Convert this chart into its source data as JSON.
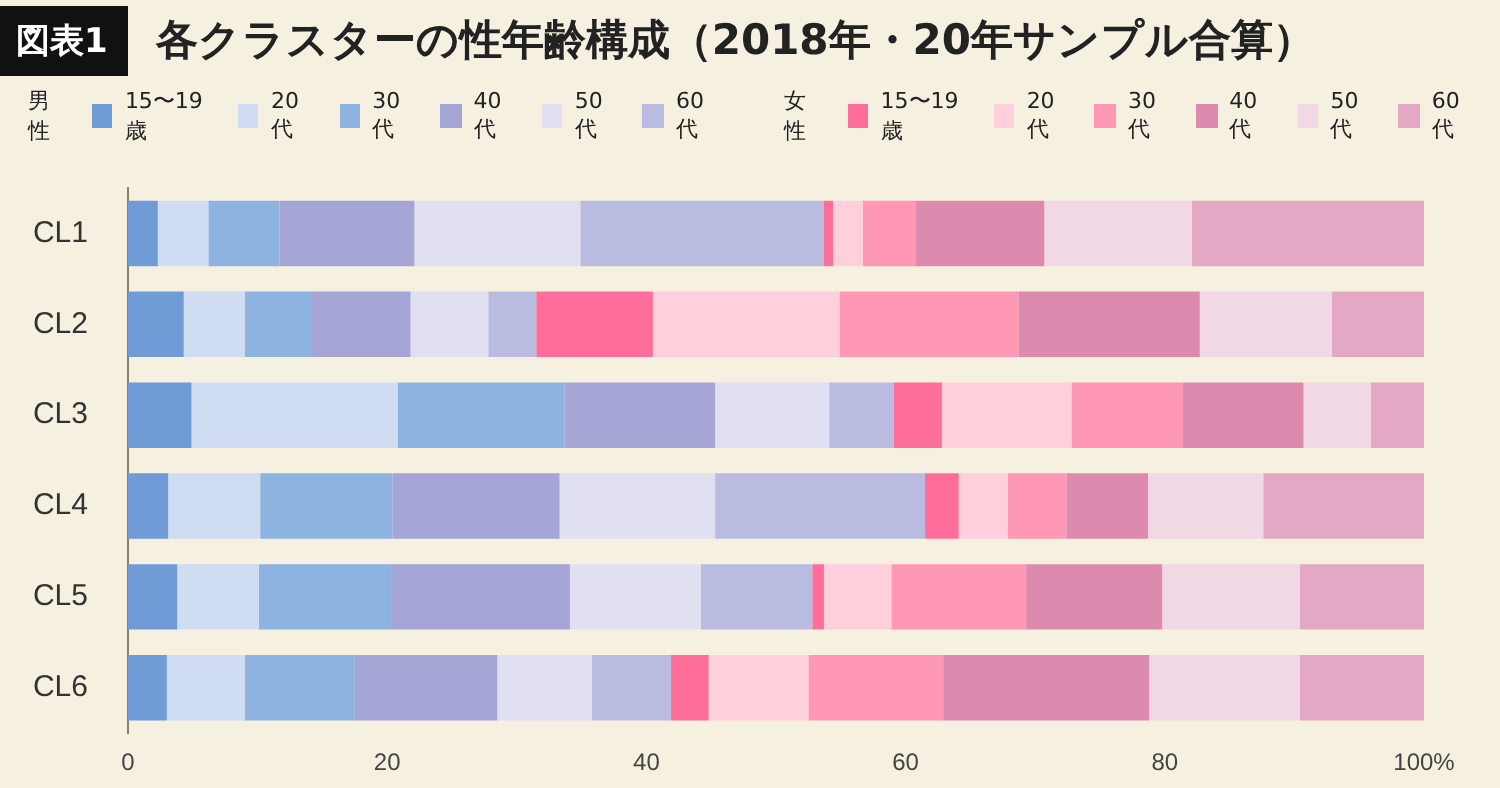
{
  "chart_data": {
    "type": "bar",
    "orientation": "horizontal",
    "stacked": true,
    "subtitle": "図表1",
    "title": "各クラスターの性年齢構成（2018年・20年サンプル合算）",
    "annotations": [
      "男性",
      "女性"
    ],
    "categories": [
      "CL1",
      "CL2",
      "CL3",
      "CL4",
      "CL5",
      "CL6"
    ],
    "series": [
      {
        "name": "15〜19歳",
        "color": "#6f9bd6",
        "values": [
          2.3,
          4.3,
          4.9,
          3.1,
          3.8,
          3.0
        ]
      },
      {
        "name": "20代",
        "color": "#d0dcf2",
        "values": [
          3.9,
          4.7,
          15.9,
          7.1,
          6.3,
          6.0
        ]
      },
      {
        "name": "30代",
        "color": "#8fb3e1",
        "values": [
          5.5,
          5.2,
          12.9,
          10.2,
          10.2,
          8.5
        ]
      },
      {
        "name": "40代",
        "color": "#a6a6d6",
        "values": [
          10.4,
          7.6,
          11.6,
          12.9,
          13.8,
          11.0
        ]
      },
      {
        "name": "50代",
        "color": "#e0e0f2",
        "values": [
          12.8,
          6.0,
          8.8,
          12.0,
          10.1,
          7.3
        ]
      },
      {
        "name": "60代",
        "color": "#babbe0",
        "values": [
          18.8,
          3.7,
          5.0,
          16.2,
          8.6,
          6.1
        ]
      },
      {
        "name": "15〜19歳",
        "color": "#ff6e9a",
        "values": [
          0.7,
          9.0,
          3.7,
          2.6,
          0.9,
          2.9
        ]
      },
      {
        "name": "20代",
        "color": "#ffd0dc",
        "values": [
          2.3,
          14.4,
          10.0,
          3.8,
          5.2,
          7.7
        ]
      },
      {
        "name": "30代",
        "color": "#ff98b5",
        "values": [
          4.1,
          13.8,
          8.6,
          4.5,
          10.4,
          10.4
        ]
      },
      {
        "name": "40代",
        "color": "#dc8aae",
        "values": [
          9.9,
          14.0,
          9.3,
          6.3,
          10.5,
          15.9
        ]
      },
      {
        "name": "50代",
        "color": "#f2d8e4",
        "values": [
          11.4,
          10.2,
          5.2,
          8.9,
          10.6,
          11.6
        ]
      },
      {
        "name": "60代",
        "color": "#e5a8c4",
        "values": [
          17.9,
          7.1,
          4.1,
          12.4,
          9.6,
          9.6
        ]
      }
    ],
    "xlim": [
      0,
      100
    ],
    "xticks": [
      0,
      20,
      40,
      60,
      80,
      {
        "value": 100,
        "label": "100%"
      }
    ],
    "grid": false,
    "legend": "top"
  }
}
